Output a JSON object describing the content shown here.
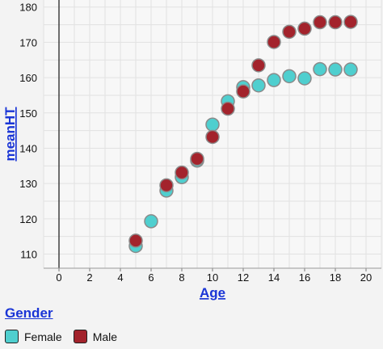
{
  "chart_data": {
    "type": "scatter",
    "xlabel": "Age",
    "ylabel": "meanHT",
    "xlim": [
      -1,
      21
    ],
    "ylim": [
      106,
      182
    ],
    "x_ticks": [
      0,
      2,
      4,
      6,
      8,
      10,
      12,
      14,
      16,
      18,
      20
    ],
    "y_ticks": [
      110,
      120,
      130,
      140,
      150,
      160,
      170,
      180
    ],
    "grid": true,
    "legend_placement": "bottom-left",
    "series": [
      {
        "name": "Female",
        "color": "#4fcfcf",
        "points": [
          [
            5,
            112.3
          ],
          [
            6,
            119.3
          ],
          [
            7,
            128
          ],
          [
            8,
            131.8
          ],
          [
            9,
            136.5
          ],
          [
            10,
            146.7
          ],
          [
            11,
            153.3
          ],
          [
            12,
            157.3
          ],
          [
            13,
            157.8
          ],
          [
            14,
            159.3
          ],
          [
            15,
            160.4
          ],
          [
            16,
            159.8
          ],
          [
            17,
            162.4
          ],
          [
            18,
            162.3
          ],
          [
            19,
            162.3
          ]
        ]
      },
      {
        "name": "Male",
        "color": "#a3232c",
        "points": [
          [
            5,
            113.8
          ],
          [
            7,
            129.5
          ],
          [
            8,
            133.1
          ],
          [
            9,
            137
          ],
          [
            10,
            143.2
          ],
          [
            11,
            151.2
          ],
          [
            12,
            156.1
          ],
          [
            13,
            163.5
          ],
          [
            14,
            170.1
          ],
          [
            15,
            173
          ],
          [
            16,
            173.9
          ],
          [
            17,
            175.7
          ],
          [
            18,
            175.7
          ],
          [
            19,
            175.8
          ]
        ]
      }
    ]
  },
  "legend": {
    "title": "Gender",
    "items": [
      "Female",
      "Male"
    ]
  }
}
